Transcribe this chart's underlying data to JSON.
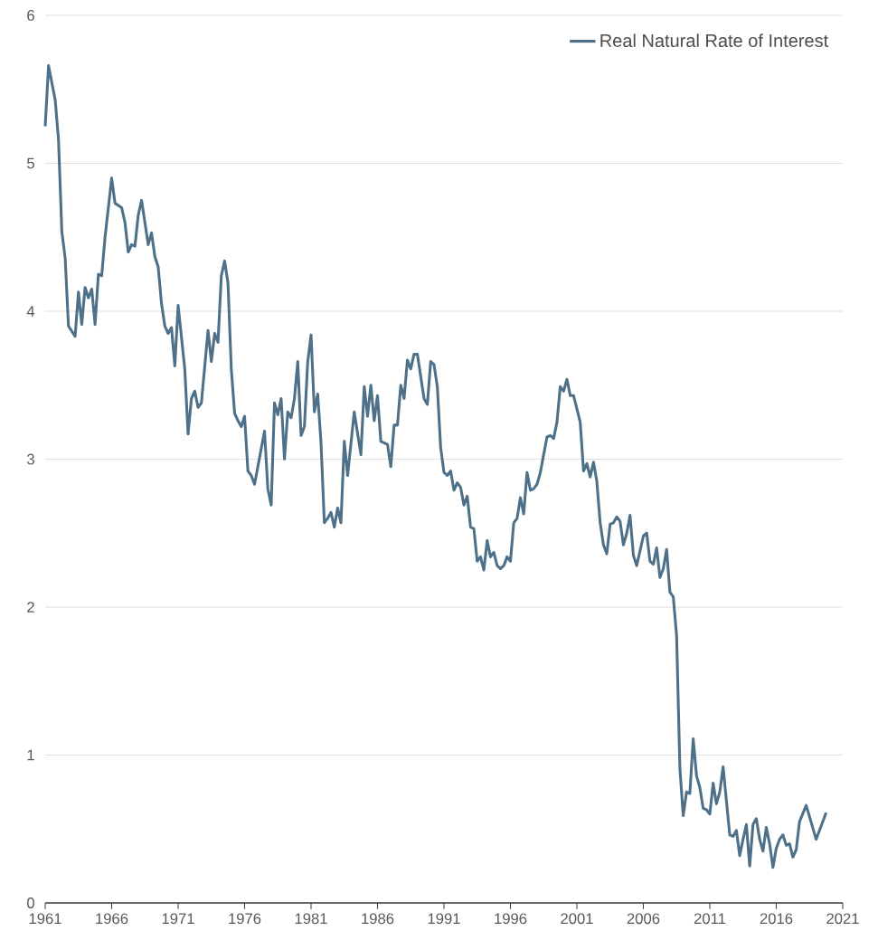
{
  "chart_data": {
    "type": "line",
    "x": [
      1961,
      1961.25,
      1961.75,
      1962,
      1962.25,
      1962.5,
      1962.75,
      1963.25,
      1963.5,
      1963.75,
      1964,
      1964.25,
      1964.5,
      1964.75,
      1965,
      1965.25,
      1965.5,
      1966,
      1966.25,
      1966.75,
      1967,
      1967.25,
      1967.5,
      1967.75,
      1968,
      1968.25,
      1968.75,
      1969,
      1969.25,
      1969.5,
      1969.75,
      1970,
      1970.25,
      1970.5,
      1970.75,
      1971,
      1971.5,
      1971.75,
      1972,
      1972.25,
      1972.5,
      1972.75,
      1973.25,
      1973.5,
      1973.75,
      1974,
      1974.25,
      1974.5,
      1974.75,
      1975,
      1975.25,
      1975.5,
      1975.75,
      1976,
      1976.25,
      1976.5,
      1976.75,
      1977.5,
      1977.75,
      1978,
      1978.25,
      1978.5,
      1978.75,
      1979,
      1979.25,
      1979.5,
      1979.75,
      1980,
      1980.25,
      1980.5,
      1980.75,
      1981,
      1981.25,
      1981.5,
      1981.75,
      1982,
      1982.25,
      1982.5,
      1982.75,
      1983,
      1983.25,
      1983.5,
      1983.75,
      1984.25,
      1984.75,
      1985,
      1985.25,
      1985.5,
      1985.75,
      1986,
      1986.25,
      1986.5,
      1986.75,
      1987,
      1987.25,
      1987.5,
      1987.75,
      1988,
      1988.25,
      1988.5,
      1988.75,
      1989,
      1989.5,
      1989.75,
      1990,
      1990.25,
      1990.5,
      1990.75,
      1991,
      1991.25,
      1991.5,
      1991.75,
      1992,
      1992.25,
      1992.5,
      1992.75,
      1993,
      1993.25,
      1993.5,
      1993.75,
      1994,
      1994.25,
      1994.5,
      1994.75,
      1995,
      1995.25,
      1995.5,
      1995.75,
      1996,
      1996.25,
      1996.5,
      1996.75,
      1997,
      1997.25,
      1997.5,
      1997.75,
      1998,
      1998.25,
      1998.75,
      1999,
      1999.25,
      1999.5,
      1999.75,
      2000,
      2000.25,
      2000.5,
      2000.75,
      2001.25,
      2001.5,
      2001.75,
      2002,
      2002.25,
      2002.5,
      2002.75,
      2003,
      2003.25,
      2003.5,
      2003.75,
      2004,
      2004.25,
      2004.5,
      2004.75,
      2005,
      2005.25,
      2005.5,
      2006,
      2006.25,
      2006.5,
      2006.75,
      2007,
      2007.25,
      2007.5,
      2007.75,
      2008,
      2008.25,
      2008.5,
      2008.75,
      2009,
      2009.25,
      2009.5,
      2009.75,
      2010,
      2010.25,
      2010.5,
      2010.75,
      2011,
      2011.25,
      2011.5,
      2011.75,
      2012,
      2012.25,
      2012.5,
      2012.75,
      2013,
      2013.25,
      2013.5,
      2013.75,
      2014,
      2014.25,
      2014.5,
      2014.75,
      2015,
      2015.25,
      2015.5,
      2015.75,
      2016,
      2016.25,
      2016.5,
      2016.75,
      2017,
      2017.25,
      2017.5,
      2017.75,
      2018.25,
      2019,
      2019.75
    ],
    "series": [
      {
        "name": "Real Natural Rate of Interest",
        "color": "#4e7189",
        "values": [
          5.25,
          5.66,
          5.43,
          5.16,
          4.54,
          4.36,
          3.9,
          3.83,
          4.13,
          3.91,
          4.16,
          4.09,
          4.15,
          3.91,
          4.25,
          4.24,
          4.5,
          4.9,
          4.73,
          4.7,
          4.6,
          4.4,
          4.45,
          4.44,
          4.65,
          4.75,
          4.45,
          4.53,
          4.37,
          4.3,
          4.05,
          3.9,
          3.85,
          3.89,
          3.63,
          4.04,
          3.61,
          3.17,
          3.41,
          3.46,
          3.35,
          3.38,
          3.87,
          3.66,
          3.85,
          3.79,
          4.24,
          4.34,
          4.19,
          3.61,
          3.31,
          3.26,
          3.22,
          3.29,
          2.92,
          2.89,
          2.83,
          3.19,
          2.8,
          2.69,
          3.38,
          3.3,
          3.41,
          3.0,
          3.32,
          3.28,
          3.41,
          3.66,
          3.16,
          3.22,
          3.66,
          3.84,
          3.32,
          3.44,
          3.11,
          2.57,
          2.6,
          2.64,
          2.54,
          2.67,
          2.57,
          3.12,
          2.89,
          3.32,
          3.03,
          3.49,
          3.29,
          3.5,
          3.26,
          3.43,
          3.12,
          3.11,
          3.1,
          2.95,
          3.23,
          3.23,
          3.5,
          3.41,
          3.67,
          3.61,
          3.71,
          3.71,
          3.41,
          3.37,
          3.66,
          3.64,
          3.49,
          3.08,
          2.91,
          2.89,
          2.92,
          2.79,
          2.84,
          2.81,
          2.69,
          2.75,
          2.54,
          2.53,
          2.31,
          2.34,
          2.25,
          2.45,
          2.34,
          2.37,
          2.28,
          2.26,
          2.28,
          2.34,
          2.31,
          2.57,
          2.6,
          2.74,
          2.63,
          2.91,
          2.79,
          2.8,
          2.83,
          2.91,
          3.15,
          3.16,
          3.14,
          3.25,
          3.49,
          3.46,
          3.54,
          3.43,
          3.43,
          3.25,
          2.92,
          2.97,
          2.88,
          2.98,
          2.85,
          2.57,
          2.42,
          2.36,
          2.56,
          2.57,
          2.61,
          2.58,
          2.42,
          2.5,
          2.62,
          2.35,
          2.28,
          2.48,
          2.5,
          2.31,
          2.29,
          2.4,
          2.2,
          2.26,
          2.39,
          2.1,
          2.07,
          1.81,
          0.91,
          0.59,
          0.75,
          0.74,
          1.11,
          0.86,
          0.78,
          0.64,
          0.63,
          0.6,
          0.81,
          0.67,
          0.75,
          0.92,
          0.69,
          0.46,
          0.45,
          0.49,
          0.32,
          0.43,
          0.53,
          0.25,
          0.53,
          0.57,
          0.43,
          0.35,
          0.51,
          0.4,
          0.24,
          0.37,
          0.43,
          0.46,
          0.39,
          0.4,
          0.31,
          0.36,
          0.55,
          0.66,
          0.43,
          0.61
        ]
      }
    ],
    "xlim": [
      1961,
      2021
    ],
    "xticks": [
      1961,
      1966,
      1971,
      1976,
      1981,
      1986,
      1991,
      1996,
      2001,
      2006,
      2011,
      2016,
      2021
    ],
    "ylim": [
      0,
      6
    ],
    "yticks": [
      0,
      1,
      2,
      3,
      4,
      5,
      6
    ],
    "grid": "y",
    "legend": "top right",
    "marker": "none",
    "line_style": "solid"
  }
}
